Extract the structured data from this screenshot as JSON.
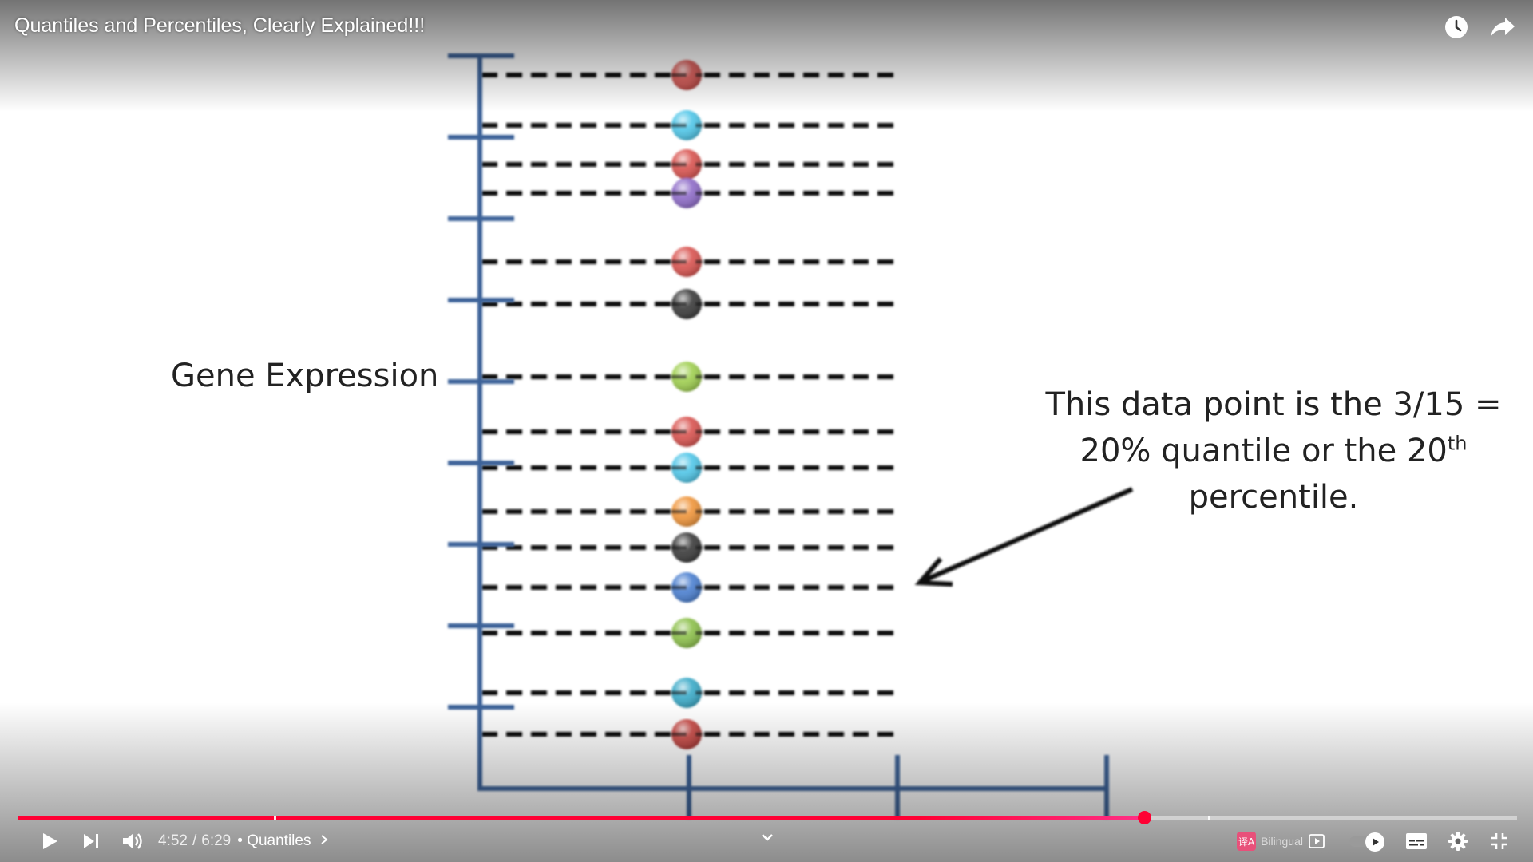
{
  "video": {
    "title": "Quantiles and Percentiles, Clearly Explained!!!"
  },
  "top_bar": {
    "icons": [
      "watch-later-icon",
      "share-icon"
    ]
  },
  "slide": {
    "gene_label": "Gene Expression",
    "annotation": {
      "line1": "This data point is the 3/15 =",
      "line2_main": "20% quantile or the 20",
      "line2_sup": "th",
      "line3": "percentile."
    },
    "points": [
      {
        "color": "#d9534f"
      },
      {
        "color": "#4fc6e8"
      },
      {
        "color": "#d9534f"
      },
      {
        "color": "#8e6bc8"
      },
      {
        "color": "#d9534f"
      },
      {
        "color": "#3a3a3a"
      },
      {
        "color": "#9fcf4f"
      },
      {
        "color": "#d9534f"
      },
      {
        "color": "#4fc6e8"
      },
      {
        "color": "#f0953a"
      },
      {
        "color": "#3a3a3a"
      },
      {
        "color": "#4a7fd0"
      },
      {
        "color": "#8cc04a"
      },
      {
        "color": "#3aaac8"
      },
      {
        "color": "#c8423e"
      }
    ],
    "axis_color": "#3e639a"
  },
  "player": {
    "current_time": "4:52",
    "duration": "6:29",
    "chapter_prefix": "•",
    "chapter": "Quantiles",
    "progress_fraction": 0.751,
    "accent_color": "#ff0033",
    "bilingual_badge": "译A",
    "bilingual_label": "Bilingual"
  }
}
